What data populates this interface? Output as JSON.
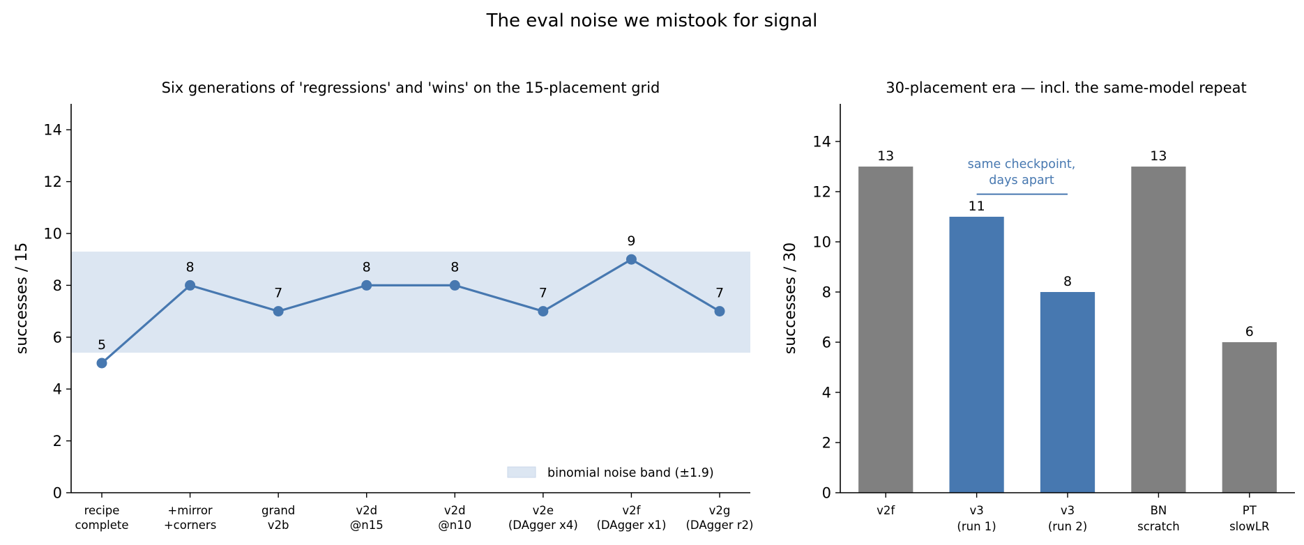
{
  "figure_title": "The eval noise we mistook for signal",
  "chart_data": [
    {
      "type": "line",
      "title": "Six generations of 'regressions' and 'wins' on the 15-placement grid",
      "xlabel": "",
      "ylabel": "successes / 15",
      "ylim": [
        0,
        15
      ],
      "yticks": [
        "0",
        "2",
        "4",
        "6",
        "8",
        "10",
        "12",
        "14"
      ],
      "categories": [
        "recipe\ncomplete",
        "+mirror\n+corners",
        "grand\nv2b",
        "v2d\n@n15",
        "v2d\n@n10",
        "v2e\n(DAgger x4)",
        "v2f\n(DAgger x1)",
        "v2g\n(DAgger r2)"
      ],
      "values": [
        5,
        8,
        7,
        8,
        8,
        7,
        9,
        7
      ],
      "data_labels": [
        "5",
        "8",
        "7",
        "8",
        "8",
        "7",
        "9",
        "7"
      ],
      "band": {
        "low": 5.4,
        "high": 9.3,
        "label": "binomial noise band (±1.9)"
      },
      "legend": "bottom-right",
      "grid": false,
      "colors": {
        "line": "#4778b0",
        "band": "#dce6f2"
      }
    },
    {
      "type": "bar",
      "title": "30-placement era — incl. the same-model repeat",
      "xlabel": "",
      "ylabel": "successes / 30",
      "ylim": [
        0,
        15.5
      ],
      "yticks": [
        "0",
        "2",
        "4",
        "6",
        "8",
        "10",
        "12",
        "14"
      ],
      "categories": [
        "v2f",
        "v3\n(run 1)",
        "v3\n(run 2)",
        "BN\nscratch",
        "PT\nslowLR"
      ],
      "values": [
        13,
        11,
        8,
        13,
        6
      ],
      "data_labels": [
        "13",
        "11",
        "8",
        "13",
        "6"
      ],
      "highlighted": [
        false,
        true,
        true,
        false,
        false
      ],
      "annotation": {
        "text": [
          "same checkpoint,",
          "days apart"
        ],
        "bracket_y": 11.9
      },
      "grid": false,
      "colors": {
        "default": "#808080",
        "highlight": "#4778b0"
      }
    }
  ]
}
